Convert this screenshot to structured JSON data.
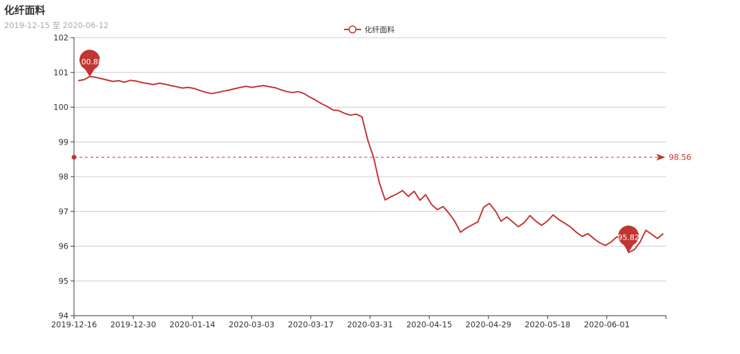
{
  "header": {
    "title": "化纤面料",
    "subtitle": "2019-12-15 至 2020-06-12"
  },
  "legend": {
    "label": "化纤面料"
  },
  "colors": {
    "series": "#c23531",
    "grid": "#cccccc",
    "axis": "#333333"
  },
  "chart_data": {
    "type": "line",
    "title": "化纤面料",
    "subtitle": "2019-12-15 至 2020-06-12",
    "ylim": [
      94,
      102
    ],
    "yticks": [
      94,
      95,
      96,
      97,
      98,
      99,
      100,
      101,
      102
    ],
    "xtick_labels": [
      "2019-12-16",
      "2019-12-30",
      "2020-01-14",
      "2020-03-03",
      "2020-03-17",
      "2020-03-31",
      "2020-04-15",
      "2020-04-29",
      "2020-05-18",
      "2020-06-01"
    ],
    "grid": "horizontal",
    "legend_position": "top-center",
    "series": [
      {
        "name": "化纤面料",
        "values": [
          100.76,
          100.79,
          100.88,
          100.86,
          100.82,
          100.78,
          100.74,
          100.76,
          100.72,
          100.77,
          100.75,
          100.71,
          100.68,
          100.65,
          100.69,
          100.66,
          100.62,
          100.59,
          100.55,
          100.57,
          100.54,
          100.48,
          100.43,
          100.39,
          100.42,
          100.46,
          100.49,
          100.53,
          100.57,
          100.6,
          100.57,
          100.6,
          100.62,
          100.59,
          100.56,
          100.5,
          100.45,
          100.42,
          100.45,
          100.39,
          100.29,
          100.2,
          100.1,
          100.02,
          99.92,
          99.9,
          99.82,
          99.77,
          99.8,
          99.72,
          99.05,
          98.56,
          97.82,
          97.33,
          97.42,
          97.5,
          97.6,
          97.43,
          97.58,
          97.32,
          97.48,
          97.2,
          97.05,
          97.14,
          96.95,
          96.72,
          96.4,
          96.52,
          96.61,
          96.7,
          97.12,
          97.23,
          97.02,
          96.72,
          96.84,
          96.7,
          96.56,
          96.68,
          96.88,
          96.72,
          96.6,
          96.72,
          96.9,
          96.76,
          96.66,
          96.55,
          96.4,
          96.28,
          96.36,
          96.22,
          96.1,
          96.02,
          96.12,
          96.27,
          96.21,
          95.82,
          95.9,
          96.12,
          96.46,
          96.34,
          96.22,
          96.36
        ]
      }
    ],
    "annotations": {
      "max": 100.88,
      "min": 95.82,
      "average": 98.56
    }
  }
}
